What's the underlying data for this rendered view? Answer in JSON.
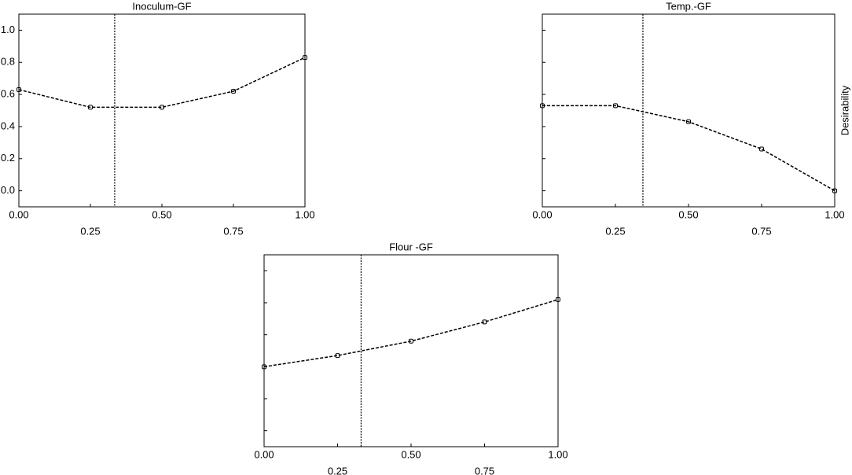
{
  "chart_data": [
    {
      "type": "line",
      "title": "Inoculum-GF",
      "x": [
        0,
        0.25,
        0.5,
        0.75,
        1
      ],
      "series": [
        {
          "color": "#000000",
          "values": [
            0.63,
            0.52,
            0.52,
            0.62,
            0.83
          ]
        }
      ],
      "vline": 0.335,
      "xlim": [
        0,
        1
      ],
      "ylim": [
        -0.1,
        1.1
      ],
      "xticks": [
        {
          "value": 0,
          "label": "0.00"
        },
        {
          "value": 0.25,
          "label": "0.25"
        },
        {
          "value": 0.5,
          "label": "0.50"
        },
        {
          "value": 0.75,
          "label": "0.75"
        },
        {
          "value": 1,
          "label": "1.00"
        }
      ],
      "yticks": [
        {
          "value": 0,
          "label": "0.0"
        },
        {
          "value": 0.2,
          "label": "0.2"
        },
        {
          "value": 0.4,
          "label": "0.4"
        },
        {
          "value": 0.6,
          "label": "0.6"
        },
        {
          "value": 0.8,
          "label": "0.8"
        },
        {
          "value": 1,
          "label": "1.0"
        }
      ],
      "ytick_labels": true
    },
    {
      "type": "line",
      "title": "Temp.-GF",
      "ylabel": "Desirability",
      "x": [
        0,
        0.25,
        0.5,
        0.75,
        1
      ],
      "series": [
        {
          "color": "#000000",
          "values": [
            0.53,
            0.53,
            0.43,
            0.26,
            0.0
          ]
        }
      ],
      "vline": 0.344,
      "xlim": [
        0,
        1
      ],
      "ylim": [
        -0.1,
        1.1
      ],
      "xticks": [
        {
          "value": 0,
          "label": "0.00"
        },
        {
          "value": 0.25,
          "label": "0.25"
        },
        {
          "value": 0.5,
          "label": "0.50"
        },
        {
          "value": 0.75,
          "label": "0.75"
        },
        {
          "value": 1,
          "label": "1.00"
        }
      ],
      "yticks": [
        0,
        0.2,
        0.4,
        0.6,
        0.8,
        1
      ],
      "ytick_labels": false
    },
    {
      "type": "line",
      "title": "Flour -GF",
      "x": [
        0,
        0.25,
        0.5,
        0.75,
        1
      ],
      "series": [
        {
          "color": "#000000",
          "values": [
            0.4,
            0.47,
            0.56,
            0.68,
            0.82
          ]
        }
      ],
      "vline": 0.33,
      "xlim": [
        0,
        1
      ],
      "ylim": [
        -0.1,
        1.1
      ],
      "xticks": [
        {
          "value": 0,
          "label": "0.00"
        },
        {
          "value": 0.25,
          "label": "0.25"
        },
        {
          "value": 0.5,
          "label": "0.50"
        },
        {
          "value": 0.75,
          "label": "0.75"
        },
        {
          "value": 1,
          "label": "1.00"
        }
      ],
      "yticks": [
        0,
        0.2,
        0.4,
        0.6,
        0.8,
        1
      ],
      "ytick_labels": false
    }
  ]
}
